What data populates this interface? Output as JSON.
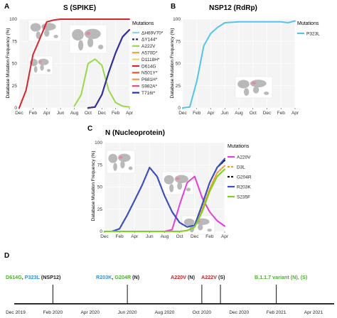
{
  "panels": [
    {
      "letter": "A",
      "title": "S (SPIKE)",
      "ylabel": "Database Mutation Frequency (%)",
      "yticks": [
        "0",
        "25",
        "50",
        "75",
        "100"
      ],
      "xticks": [
        "Dec",
        "Feb",
        "Apr",
        "Jun",
        "Aug",
        "Oct",
        "Dec",
        "Feb",
        "Apr"
      ],
      "legend_title": "Mutations"
    },
    {
      "letter": "B",
      "title": "NSP12 (RdRp)",
      "ylabel": "Database Mutation Frequency (%)",
      "yticks": [
        "0",
        "25",
        "50",
        "75",
        "100"
      ],
      "xticks": [
        "Dec",
        "Feb",
        "Apr",
        "Jun",
        "Aug",
        "Oct",
        "Dec",
        "Feb",
        "Apr"
      ],
      "legend_title": "Mutations"
    },
    {
      "letter": "C",
      "title": "N (Nucleoprotein)",
      "ylabel": "Database Mutation Frequency (%)",
      "yticks": [
        "0",
        "25",
        "50",
        "75",
        "100"
      ],
      "xticks": [
        "Dec",
        "Feb",
        "Apr",
        "Jun",
        "Aug",
        "Oct",
        "Dec",
        "Feb",
        "Apr"
      ],
      "legend_title": "Mutations"
    }
  ],
  "timeline": {
    "letter": "D",
    "dates": [
      "Dec 2019",
      "Feb 2020",
      "Apr 2020",
      "Jun 2020",
      "Aug 2020",
      "Oct 2020",
      "Dec 2020",
      "Feb 2021",
      "Apr 2021"
    ],
    "events": [
      {
        "parts": [
          {
            "text": "D614G",
            "color": "#4daf2c"
          },
          {
            "text": ", ",
            "color": "#222222"
          },
          {
            "text": "P323L",
            "color": "#3a8fd6"
          },
          {
            "text": " (NSP12)",
            "color": "#222222"
          }
        ]
      },
      {
        "parts": [
          {
            "text": "R203K",
            "color": "#3a8fd6"
          },
          {
            "text": ", ",
            "color": "#222222"
          },
          {
            "text": "G204R",
            "color": "#4daf2c"
          },
          {
            "text": " (N)",
            "color": "#222222"
          }
        ]
      },
      {
        "parts": [
          {
            "text": "A220V",
            "color": "#c0262d"
          },
          {
            "text": " (N)",
            "color": "#222222"
          }
        ]
      },
      {
        "parts": [
          {
            "text": "A222V",
            "color": "#c0262d"
          },
          {
            "text": " (S)",
            "color": "#222222"
          }
        ]
      },
      {
        "parts": [
          {
            "text": "B.1.1.7 variant (N), (S)",
            "color": "#4daf2c"
          }
        ]
      }
    ]
  },
  "chart_data": [
    {
      "panel": "A",
      "type": "line",
      "title": "S (SPIKE)",
      "ylabel": "Database Mutation Frequency (%)",
      "ylim": [
        0,
        100
      ],
      "x_ticks": [
        "Dec",
        "Feb",
        "Apr",
        "Jun",
        "Aug",
        "Oct",
        "Dec",
        "Feb",
        "Apr"
      ],
      "legend": "right",
      "series": [
        {
          "name": "ΔH69V70*",
          "color": "#8fd3ef",
          "dash": "solid",
          "x": [
            10,
            11,
            12,
            13,
            14,
            15,
            16
          ],
          "y": [
            0,
            1,
            15,
            40,
            62,
            80,
            88
          ]
        },
        {
          "name": "ΔY144*",
          "color": "#1a2b6e",
          "dash": "dashed",
          "x": [
            10,
            11,
            12,
            13,
            14,
            15,
            16
          ],
          "y": [
            0,
            1,
            15,
            40,
            62,
            80,
            88
          ]
        },
        {
          "name": "A222V",
          "color": "#9ad84b",
          "dash": "solid",
          "x": [
            8,
            9,
            10,
            11,
            12,
            13,
            14,
            15,
            16
          ],
          "y": [
            2,
            15,
            50,
            55,
            48,
            20,
            6,
            2,
            1
          ]
        },
        {
          "name": "A570D*",
          "color": "#f4a235",
          "dash": "solid",
          "x": [
            10,
            11,
            12,
            13,
            14,
            15,
            16
          ],
          "y": [
            0,
            1,
            15,
            40,
            62,
            80,
            88
          ]
        },
        {
          "name": "D1118H*",
          "color": "#f0d46a",
          "dash": "solid",
          "x": [
            10,
            11,
            12,
            13,
            14,
            15,
            16
          ],
          "y": [
            0,
            1,
            15,
            40,
            62,
            80,
            88
          ]
        },
        {
          "name": "D614G",
          "color": "#d4262c",
          "dash": "solid",
          "x": [
            0,
            1,
            2,
            3,
            4,
            5,
            6,
            8,
            10,
            12,
            14,
            16
          ],
          "y": [
            0,
            20,
            60,
            78,
            97,
            99,
            100,
            100,
            100,
            100,
            100,
            100
          ]
        },
        {
          "name": "N501Y*",
          "color": "#e8551f",
          "dash": "solid",
          "x": [
            10,
            11,
            12,
            13,
            14,
            15,
            16
          ],
          "y": [
            0,
            1,
            15,
            40,
            62,
            80,
            88
          ]
        },
        {
          "name": "P681H*",
          "color": "#e8a050",
          "dash": "solid",
          "x": [
            10,
            11,
            12,
            13,
            14,
            15,
            16
          ],
          "y": [
            0,
            1,
            15,
            40,
            62,
            80,
            88
          ]
        },
        {
          "name": "S982A*",
          "color": "#e04a86",
          "dash": "solid",
          "x": [
            10,
            11,
            12,
            13,
            14,
            15,
            16
          ],
          "y": [
            0,
            1,
            15,
            40,
            62,
            80,
            88
          ]
        },
        {
          "name": "T716I*",
          "color": "#2433a8",
          "dash": "solid",
          "x": [
            10,
            11,
            12,
            13,
            14,
            15,
            16
          ],
          "y": [
            0,
            1,
            15,
            40,
            62,
            80,
            88
          ]
        }
      ]
    },
    {
      "panel": "B",
      "type": "line",
      "title": "NSP12 (RdRp)",
      "ylabel": "Database Mutation Frequency (%)",
      "ylim": [
        0,
        100
      ],
      "x_ticks": [
        "Dec",
        "Feb",
        "Apr",
        "Jun",
        "Aug",
        "Oct",
        "Dec",
        "Feb",
        "Apr"
      ],
      "legend": "right",
      "series": [
        {
          "name": "P323L",
          "color": "#56c3e8",
          "dash": "solid",
          "x": [
            0,
            1,
            2,
            3,
            4,
            5,
            6,
            8,
            10,
            12,
            14,
            15,
            16
          ],
          "y": [
            0,
            1,
            30,
            70,
            84,
            91,
            96,
            97,
            97,
            97,
            97,
            96,
            98
          ]
        }
      ]
    },
    {
      "panel": "C",
      "type": "line",
      "title": "N (Nucleoprotein)",
      "ylabel": "Database Mutation Frequency (%)",
      "ylim": [
        0,
        100
      ],
      "x_ticks": [
        "Dec",
        "Feb",
        "Apr",
        "Jun",
        "Aug",
        "Oct",
        "Dec",
        "Feb",
        "Apr"
      ],
      "legend": "right",
      "series": [
        {
          "name": "A220V",
          "color": "#e040d8",
          "dash": "solid",
          "x": [
            0,
            8,
            9,
            10,
            11,
            12,
            13,
            14,
            15,
            16
          ],
          "y": [
            0,
            0,
            2,
            30,
            55,
            62,
            38,
            22,
            12,
            6
          ]
        },
        {
          "name": "D3L",
          "color": "#f09a30",
          "dash": "dashed",
          "x": [
            0,
            10,
            11,
            12,
            13,
            14,
            15,
            16
          ],
          "y": [
            0,
            0,
            1,
            5,
            25,
            48,
            66,
            74
          ]
        },
        {
          "name": "G204R",
          "color": "#111111",
          "dash": "dashed",
          "x": [
            0,
            1,
            2,
            3,
            4,
            5,
            6,
            7,
            8,
            9,
            10,
            11,
            12,
            13,
            14,
            15,
            16
          ],
          "y": [
            0,
            0,
            3,
            18,
            35,
            52,
            72,
            62,
            40,
            22,
            10,
            5,
            7,
            30,
            55,
            72,
            80
          ]
        },
        {
          "name": "R203K",
          "color": "#3b4fc8",
          "dash": "solid",
          "x": [
            0,
            1,
            2,
            3,
            4,
            5,
            6,
            7,
            8,
            9,
            10,
            11,
            12,
            13,
            14,
            15,
            16
          ],
          "y": [
            0,
            0,
            3,
            18,
            35,
            52,
            72,
            62,
            40,
            22,
            10,
            5,
            7,
            30,
            55,
            72,
            82
          ]
        },
        {
          "name": "S235F",
          "color": "#7ed321",
          "dash": "solid",
          "x": [
            0,
            10,
            11,
            12,
            13,
            14,
            15,
            16
          ],
          "y": [
            0,
            0,
            1,
            5,
            22,
            45,
            62,
            70
          ]
        }
      ]
    }
  ]
}
